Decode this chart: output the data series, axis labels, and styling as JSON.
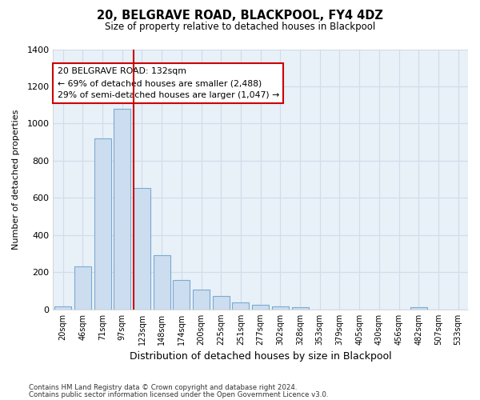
{
  "title": "20, BELGRAVE ROAD, BLACKPOOL, FY4 4DZ",
  "subtitle": "Size of property relative to detached houses in Blackpool",
  "xlabel": "Distribution of detached houses by size in Blackpool",
  "ylabel": "Number of detached properties",
  "bar_labels": [
    "20sqm",
    "46sqm",
    "71sqm",
    "97sqm",
    "123sqm",
    "148sqm",
    "174sqm",
    "200sqm",
    "225sqm",
    "251sqm",
    "277sqm",
    "302sqm",
    "328sqm",
    "353sqm",
    "379sqm",
    "405sqm",
    "430sqm",
    "456sqm",
    "482sqm",
    "507sqm",
    "533sqm"
  ],
  "bar_values": [
    15,
    230,
    920,
    1080,
    655,
    290,
    160,
    108,
    72,
    40,
    25,
    18,
    12,
    0,
    0,
    0,
    0,
    0,
    10,
    0,
    0
  ],
  "bar_color": "#ccddf0",
  "bar_edge_color": "#7aaad0",
  "vline_color": "#cc0000",
  "annotation_title": "20 BELGRAVE ROAD: 132sqm",
  "annotation_line1": "← 69% of detached houses are smaller (2,488)",
  "annotation_line2": "29% of semi-detached houses are larger (1,047) →",
  "annotation_box_color": "#ffffff",
  "annotation_box_edge": "#cc0000",
  "ylim": [
    0,
    1400
  ],
  "yticks": [
    0,
    200,
    400,
    600,
    800,
    1000,
    1200,
    1400
  ],
  "footnote1": "Contains HM Land Registry data © Crown copyright and database right 2024.",
  "footnote2": "Contains public sector information licensed under the Open Government Licence v3.0.",
  "bg_color": "#ffffff",
  "grid_color": "#d0dce8"
}
